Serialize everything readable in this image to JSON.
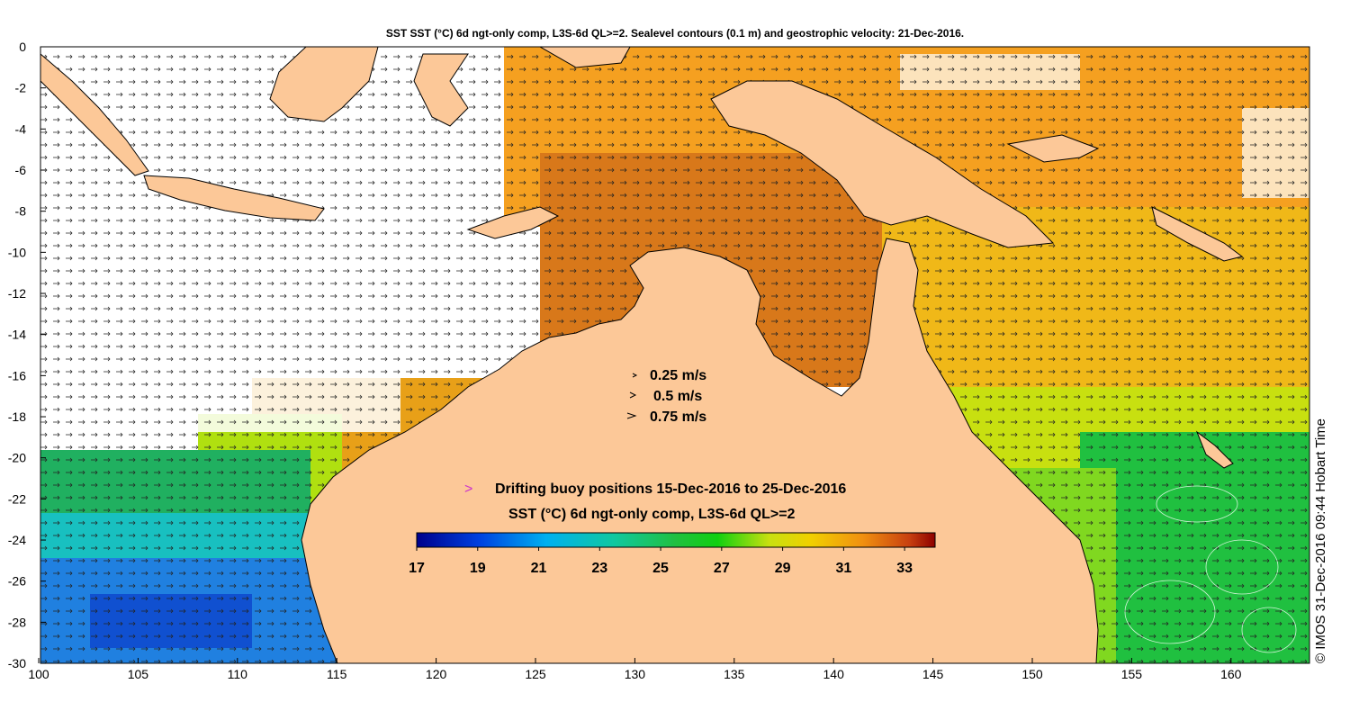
{
  "title": "SST SST (°C) 6d ngt-only comp, L3S-6d QL>=2. Sealevel contours (0.1 m) and geostrophic velocity: 21-Dec-2016.",
  "x_ticks": [
    "100",
    "105",
    "110",
    "115",
    "120",
    "125",
    "130",
    "135",
    "140",
    "145",
    "150",
    "155",
    "160"
  ],
  "y_ticks": [
    "0",
    "-2",
    "-4",
    "-6",
    "-8",
    "-10",
    "-12",
    "-14",
    "-16",
    "-18",
    "-20",
    "-22",
    "-24",
    "-26",
    "-28",
    "-30"
  ],
  "velocity_legend": [
    {
      "label": "0.25 m/s"
    },
    {
      "label": "0.5 m/s"
    },
    {
      "label": "0.75 m/s"
    }
  ],
  "buoy_legend": {
    "marker": ">",
    "label": "Drifting buoy positions 15-Dec-2016 to 25-Dec-2016",
    "color": "#cc33cc"
  },
  "colorbar": {
    "title": "SST (°C) 6d ngt-only comp, L3S-6d QL>=2",
    "ticks": [
      "17",
      "19",
      "21",
      "23",
      "25",
      "27",
      "29",
      "31",
      "33"
    ],
    "min": 17,
    "max": 34
  },
  "credit": "© IMOS 31-Dec-2016 09:44 Hobart Time",
  "colors": {
    "land": "#fcc898",
    "ocean_warm": "#f5a020",
    "ocean_hot": "#d86810",
    "ocean_mid": "#a8dc10",
    "ocean_cool": "#20c040",
    "ocean_cold": "#1a70e0",
    "no_data": "#ffffff"
  }
}
